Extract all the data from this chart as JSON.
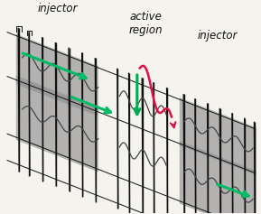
{
  "bg_color": "#f5f3ee",
  "fig_width": 2.89,
  "fig_height": 2.37,
  "dpi": 100,
  "injector_label_1": "injector",
  "injector_label_2": "injector",
  "active_label": "active\nregion",
  "gray_color": "#909090",
  "gray_alpha": 0.65,
  "line_color": "#111111",
  "green_arrow_color": "#00bb66",
  "red_arrow_color": "#dd1144",
  "green_down_color": "#00aa55",
  "label_fontsize": 8.5
}
